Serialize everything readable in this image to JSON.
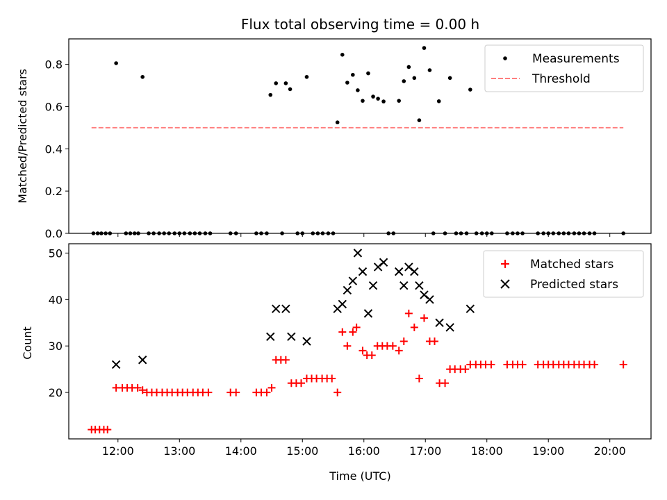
{
  "figure": {
    "title": "Flux total observing time = 0.00 h",
    "xlabel": "Time (UTC)"
  },
  "chart_data": [
    {
      "type": "scatter",
      "title": "Flux total observing time = 0.00 h",
      "xlabel": "",
      "ylabel": "Matched/Predicted stars",
      "xlim": [
        11.2,
        20.67
      ],
      "ylim": [
        0,
        0.92
      ],
      "yticks": [
        0.0,
        0.2,
        0.4,
        0.6,
        0.8
      ],
      "legend_position": "top-right",
      "series": [
        {
          "name": "Measurements",
          "marker": "dot",
          "color": "#000000",
          "points": [
            [
              11.6,
              0
            ],
            [
              11.67,
              0
            ],
            [
              11.73,
              0
            ],
            [
              11.8,
              0
            ],
            [
              11.87,
              0
            ],
            [
              11.97,
              0.805
            ],
            [
              12.13,
              0
            ],
            [
              12.2,
              0
            ],
            [
              12.27,
              0
            ],
            [
              12.33,
              0
            ],
            [
              12.4,
              0.74
            ],
            [
              12.5,
              0
            ],
            [
              12.58,
              0
            ],
            [
              12.67,
              0
            ],
            [
              12.75,
              0
            ],
            [
              12.83,
              0
            ],
            [
              12.92,
              0
            ],
            [
              13.0,
              0
            ],
            [
              13.08,
              0
            ],
            [
              13.17,
              0
            ],
            [
              13.25,
              0
            ],
            [
              13.33,
              0
            ],
            [
              13.42,
              0
            ],
            [
              13.5,
              0
            ],
            [
              13.83,
              0
            ],
            [
              13.92,
              0
            ],
            [
              14.25,
              0
            ],
            [
              14.33,
              0
            ],
            [
              14.42,
              0
            ],
            [
              14.48,
              0.655
            ],
            [
              14.57,
              0.71
            ],
            [
              14.67,
              0
            ],
            [
              14.73,
              0.71
            ],
            [
              14.8,
              0.682
            ],
            [
              14.92,
              0
            ],
            [
              15.0,
              0
            ],
            [
              15.07,
              0.74
            ],
            [
              15.17,
              0
            ],
            [
              15.25,
              0
            ],
            [
              15.33,
              0
            ],
            [
              15.42,
              0
            ],
            [
              15.5,
              0
            ],
            [
              15.57,
              0.525
            ],
            [
              15.65,
              0.845
            ],
            [
              15.73,
              0.713
            ],
            [
              15.82,
              0.75
            ],
            [
              15.9,
              0.677
            ],
            [
              15.98,
              0.627
            ],
            [
              16.07,
              0.757
            ],
            [
              16.15,
              0.647
            ],
            [
              16.23,
              0.637
            ],
            [
              16.32,
              0.624
            ],
            [
              16.4,
              0
            ],
            [
              16.48,
              0
            ],
            [
              16.57,
              0.627
            ],
            [
              16.65,
              0.72
            ],
            [
              16.73,
              0.787
            ],
            [
              16.82,
              0.735
            ],
            [
              16.9,
              0.535
            ],
            [
              16.98,
              0.877
            ],
            [
              17.07,
              0.772
            ],
            [
              17.13,
              0
            ],
            [
              17.22,
              0.625
            ],
            [
              17.32,
              0
            ],
            [
              17.4,
              0.735
            ],
            [
              17.5,
              0
            ],
            [
              17.58,
              0
            ],
            [
              17.67,
              0
            ],
            [
              17.73,
              0.68
            ],
            [
              17.83,
              0
            ],
            [
              17.92,
              0
            ],
            [
              18.0,
              0
            ],
            [
              18.08,
              0
            ],
            [
              18.33,
              0
            ],
            [
              18.42,
              0
            ],
            [
              18.5,
              0
            ],
            [
              18.58,
              0
            ],
            [
              18.83,
              0
            ],
            [
              18.92,
              0
            ],
            [
              19.0,
              0
            ],
            [
              19.08,
              0
            ],
            [
              19.17,
              0
            ],
            [
              19.25,
              0
            ],
            [
              19.33,
              0
            ],
            [
              19.42,
              0
            ],
            [
              19.5,
              0
            ],
            [
              19.58,
              0
            ],
            [
              19.67,
              0
            ],
            [
              19.75,
              0
            ],
            [
              20.22,
              0
            ]
          ]
        },
        {
          "name": "Threshold",
          "marker": "dashed-line",
          "color": "#ff7f7f",
          "points": [
            [
              11.57,
              0.5
            ],
            [
              20.22,
              0.5
            ]
          ]
        }
      ]
    },
    {
      "type": "scatter",
      "title": "",
      "xlabel": "Time (UTC)",
      "ylabel": "Count",
      "xlim": [
        11.2,
        20.67
      ],
      "ylim": [
        10,
        52
      ],
      "yticks": [
        20,
        30,
        40,
        50
      ],
      "xtick_values": [
        12,
        13,
        14,
        15,
        16,
        17,
        18,
        19,
        20
      ],
      "xtick_labels": [
        "12:00",
        "13:00",
        "14:00",
        "15:00",
        "16:00",
        "17:00",
        "18:00",
        "19:00",
        "20:00"
      ],
      "legend_position": "top-right",
      "series": [
        {
          "name": "Matched stars",
          "marker": "plus",
          "color": "#ff0000",
          "points": [
            [
              11.57,
              12
            ],
            [
              11.63,
              12
            ],
            [
              11.7,
              12
            ],
            [
              11.77,
              12
            ],
            [
              11.83,
              12
            ],
            [
              11.97,
              21
            ],
            [
              12.07,
              21
            ],
            [
              12.15,
              21
            ],
            [
              12.23,
              21
            ],
            [
              12.32,
              21
            ],
            [
              12.4,
              20.5
            ],
            [
              12.47,
              20
            ],
            [
              12.55,
              20
            ],
            [
              12.63,
              20
            ],
            [
              12.72,
              20
            ],
            [
              12.8,
              20
            ],
            [
              12.88,
              20
            ],
            [
              12.97,
              20
            ],
            [
              13.05,
              20
            ],
            [
              13.13,
              20
            ],
            [
              13.22,
              20
            ],
            [
              13.3,
              20
            ],
            [
              13.38,
              20
            ],
            [
              13.47,
              20
            ],
            [
              13.83,
              20
            ],
            [
              13.92,
              20
            ],
            [
              14.25,
              20
            ],
            [
              14.33,
              20
            ],
            [
              14.42,
              20
            ],
            [
              14.5,
              21
            ],
            [
              14.57,
              27
            ],
            [
              14.65,
              27
            ],
            [
              14.73,
              27
            ],
            [
              14.82,
              22
            ],
            [
              14.9,
              22
            ],
            [
              14.98,
              22
            ],
            [
              15.07,
              23
            ],
            [
              15.15,
              23
            ],
            [
              15.23,
              23
            ],
            [
              15.32,
              23
            ],
            [
              15.4,
              23
            ],
            [
              15.48,
              23
            ],
            [
              15.57,
              20
            ],
            [
              15.65,
              33
            ],
            [
              15.73,
              30
            ],
            [
              15.82,
              33
            ],
            [
              15.88,
              34
            ],
            [
              15.98,
              29
            ],
            [
              16.05,
              28
            ],
            [
              16.13,
              28
            ],
            [
              16.22,
              30
            ],
            [
              16.3,
              30
            ],
            [
              16.38,
              30
            ],
            [
              16.47,
              30
            ],
            [
              16.57,
              29
            ],
            [
              16.65,
              31
            ],
            [
              16.73,
              37
            ],
            [
              16.82,
              34
            ],
            [
              16.9,
              23
            ],
            [
              16.98,
              36
            ],
            [
              17.07,
              31
            ],
            [
              17.15,
              31
            ],
            [
              17.23,
              22
            ],
            [
              17.32,
              22
            ],
            [
              17.4,
              25
            ],
            [
              17.48,
              25
            ],
            [
              17.57,
              25
            ],
            [
              17.65,
              25
            ],
            [
              17.73,
              26
            ],
            [
              17.82,
              26
            ],
            [
              17.9,
              26
            ],
            [
              17.98,
              26
            ],
            [
              18.07,
              26
            ],
            [
              18.33,
              26
            ],
            [
              18.42,
              26
            ],
            [
              18.5,
              26
            ],
            [
              18.58,
              26
            ],
            [
              18.83,
              26
            ],
            [
              18.92,
              26
            ],
            [
              19.0,
              26
            ],
            [
              19.08,
              26
            ],
            [
              19.17,
              26
            ],
            [
              19.25,
              26
            ],
            [
              19.33,
              26
            ],
            [
              19.42,
              26
            ],
            [
              19.5,
              26
            ],
            [
              19.58,
              26
            ],
            [
              19.67,
              26
            ],
            [
              19.75,
              26
            ],
            [
              20.22,
              26
            ]
          ]
        },
        {
          "name": "Predicted stars",
          "marker": "x",
          "color": "#000000",
          "points": [
            [
              11.97,
              26
            ],
            [
              12.4,
              27
            ],
            [
              14.48,
              32
            ],
            [
              14.57,
              38
            ],
            [
              14.73,
              38
            ],
            [
              14.82,
              32
            ],
            [
              15.07,
              31
            ],
            [
              15.57,
              38
            ],
            [
              15.65,
              39
            ],
            [
              15.73,
              42
            ],
            [
              15.82,
              44
            ],
            [
              15.9,
              50
            ],
            [
              15.98,
              46
            ],
            [
              16.07,
              37
            ],
            [
              16.15,
              43
            ],
            [
              16.23,
              47
            ],
            [
              16.32,
              48
            ],
            [
              16.57,
              46
            ],
            [
              16.65,
              43
            ],
            [
              16.73,
              47
            ],
            [
              16.82,
              46
            ],
            [
              16.9,
              43
            ],
            [
              16.98,
              41
            ],
            [
              17.07,
              40
            ],
            [
              17.23,
              35
            ],
            [
              17.4,
              34
            ],
            [
              17.73,
              38
            ]
          ]
        }
      ]
    }
  ]
}
